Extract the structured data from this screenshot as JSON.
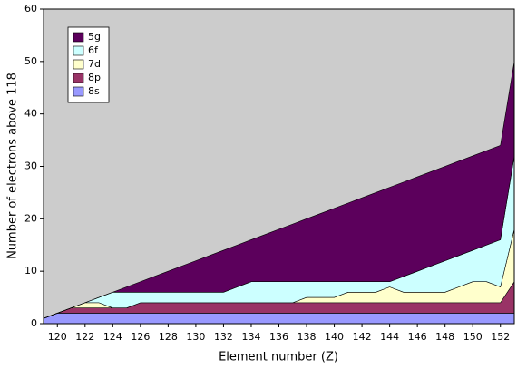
{
  "chart_data": {
    "type": "stacked-area",
    "x_label": "Element number (Z)",
    "y_label": "Number of electrons above 118",
    "x": [
      119,
      120,
      121,
      122,
      123,
      124,
      125,
      126,
      127,
      128,
      129,
      130,
      131,
      132,
      133,
      134,
      135,
      136,
      137,
      138,
      139,
      140,
      141,
      142,
      143,
      144,
      145,
      146,
      147,
      148,
      149,
      150,
      151,
      152,
      153
    ],
    "series": [
      {
        "name": "8s",
        "color": "#9999ff",
        "values": [
          1,
          2,
          2,
          2,
          2,
          2,
          2,
          2,
          2,
          2,
          2,
          2,
          2,
          2,
          2,
          2,
          2,
          2,
          2,
          2,
          2,
          2,
          2,
          2,
          2,
          2,
          2,
          2,
          2,
          2,
          2,
          2,
          2,
          2,
          2
        ]
      },
      {
        "name": "8p",
        "color": "#993366",
        "values": [
          0,
          0,
          1,
          1,
          1,
          1,
          1,
          2,
          2,
          2,
          2,
          2,
          2,
          2,
          2,
          2,
          2,
          2,
          2,
          2,
          2,
          2,
          2,
          2,
          2,
          2,
          2,
          2,
          2,
          2,
          2,
          2,
          2,
          2,
          6
        ]
      },
      {
        "name": "7d",
        "color": "#ffffcc",
        "values": [
          0,
          0,
          0,
          1,
          1,
          0,
          0,
          0,
          0,
          0,
          0,
          0,
          0,
          0,
          0,
          0,
          0,
          0,
          0,
          1,
          1,
          1,
          2,
          2,
          2,
          3,
          2,
          2,
          2,
          2,
          3,
          4,
          4,
          3,
          10
        ]
      },
      {
        "name": "6f",
        "color": "#ccffff",
        "values": [
          0,
          0,
          0,
          0,
          1,
          3,
          3,
          2,
          2,
          2,
          2,
          2,
          2,
          2,
          3,
          4,
          4,
          4,
          4,
          3,
          3,
          3,
          2,
          2,
          2,
          1,
          3,
          4,
          5,
          6,
          6,
          6,
          7,
          9,
          14
        ]
      },
      {
        "name": "5g",
        "color": "#5c005c",
        "values": [
          0,
          0,
          0,
          0,
          0,
          0,
          1,
          2,
          3,
          4,
          5,
          6,
          7,
          8,
          8,
          8,
          9,
          10,
          11,
          12,
          13,
          14,
          15,
          16,
          17,
          18,
          18,
          18,
          18,
          18,
          18,
          18,
          18,
          18,
          18
        ]
      }
    ],
    "xlim": [
      119,
      153
    ],
    "ylim": [
      0,
      60
    ],
    "xticks": [
      120,
      122,
      124,
      126,
      128,
      130,
      132,
      134,
      136,
      138,
      140,
      142,
      144,
      146,
      148,
      150,
      152
    ],
    "yticks": [
      0,
      10,
      20,
      30,
      40,
      50,
      60
    ],
    "background": "#cccccc",
    "legend": "upper left"
  }
}
